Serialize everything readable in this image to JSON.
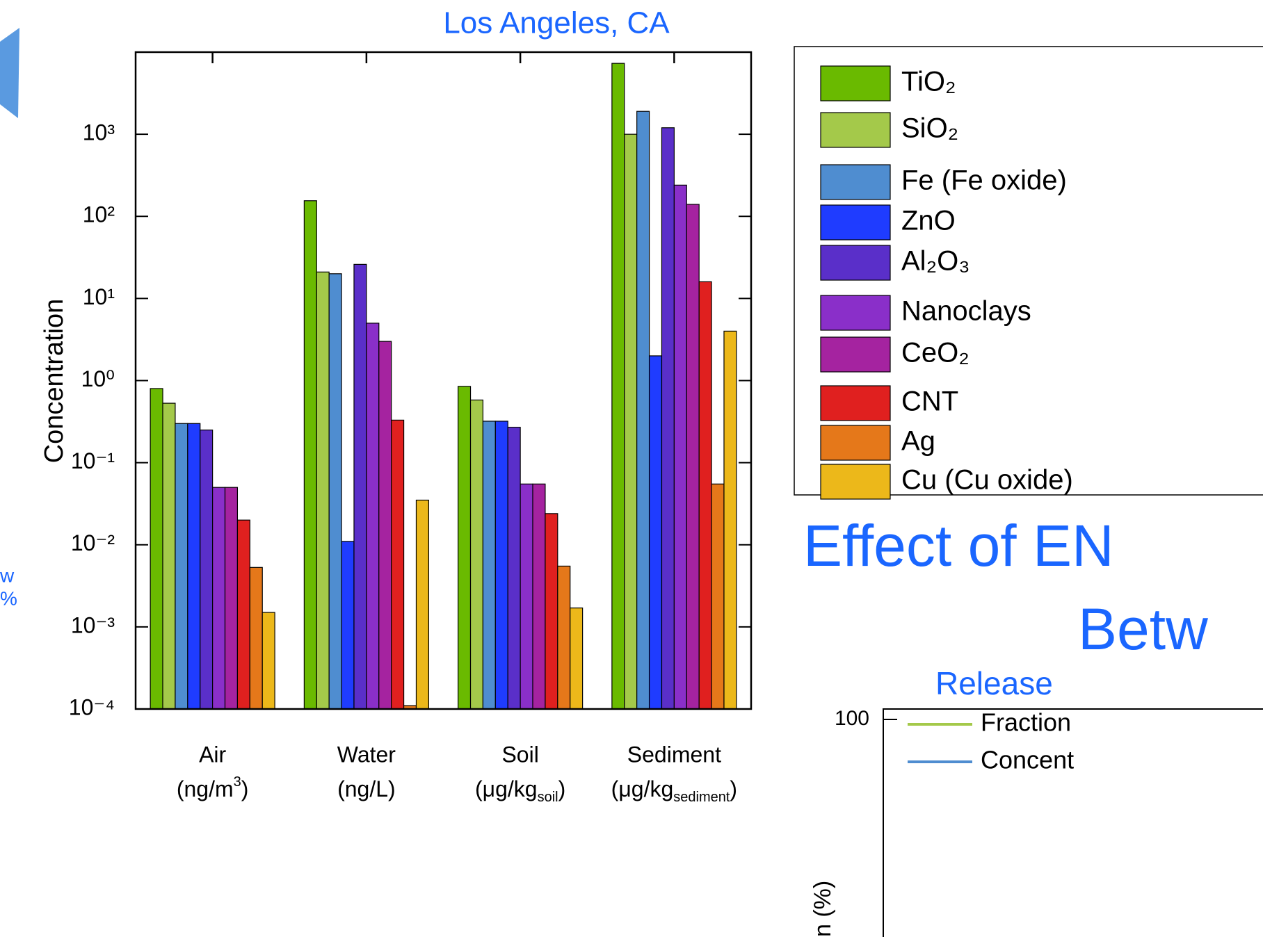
{
  "chart_data": {
    "type": "bar",
    "title": "Los Angeles, CA",
    "y_label": "Concentration",
    "log_scale": true,
    "grid": false,
    "categories": [
      "Air",
      "Water",
      "Soil",
      "Sediment"
    ],
    "category_units": [
      {
        "main": "(ng/m",
        "sup": "3",
        "end": ")"
      },
      {
        "main": "(ng/L)"
      },
      {
        "main": "(μg/kg",
        "sub": "soil",
        "end": ")"
      },
      {
        "main": "(μg/kg",
        "sub": "sediment",
        "end": ")"
      }
    ],
    "ylim": [
      0.0001,
      10000
    ],
    "yticks": [
      {
        "value": 0.0001,
        "label": "10⁻⁴"
      },
      {
        "value": 0.001,
        "label": "10⁻³"
      },
      {
        "value": 0.01,
        "label": "10⁻²"
      },
      {
        "value": 0.1,
        "label": "10⁻¹"
      },
      {
        "value": 1,
        "label": "10⁰"
      },
      {
        "value": 10,
        "label": "10¹"
      },
      {
        "value": 100,
        "label": "10²"
      },
      {
        "value": 1000,
        "label": "10³"
      }
    ],
    "legend_position": "right",
    "series": [
      {
        "name": "TiO₂",
        "color": "#6aba00",
        "values": [
          0.8,
          155,
          0.85,
          7300
        ]
      },
      {
        "name": "SiO₂",
        "color": "#a4c94a",
        "values": [
          0.53,
          21,
          0.58,
          1000
        ]
      },
      {
        "name": "Fe (Fe oxide)",
        "color": "#4f8dd0",
        "values": [
          0.3,
          20,
          0.32,
          1900
        ]
      },
      {
        "name": "ZnO",
        "color": "#1f3cff",
        "values": [
          0.3,
          0.011,
          0.32,
          2
        ]
      },
      {
        "name": "Al₂O₃",
        "color": "#5a2fc9",
        "values": [
          0.25,
          26,
          0.27,
          1200
        ]
      },
      {
        "name": "Nanoclays",
        "color": "#8a2fc9",
        "values": [
          0.05,
          5,
          0.055,
          240
        ]
      },
      {
        "name": "CeO₂",
        "color": "#a523a0",
        "values": [
          0.05,
          3,
          0.055,
          140
        ]
      },
      {
        "name": "CNT",
        "color": "#e0201f",
        "values": [
          0.02,
          0.33,
          0.024,
          16
        ]
      },
      {
        "name": "Ag",
        "color": "#e5781a",
        "values": [
          0.0053,
          0.00011,
          0.0055,
          0.055
        ]
      },
      {
        "name": "Cu (Cu oxide)",
        "color": "#ecb81a",
        "values": [
          0.0015,
          0.035,
          0.0017,
          4
        ]
      }
    ]
  },
  "slide": {
    "heading_line1": "Effect of EN",
    "heading_line2": "Betw",
    "subheading": "Release",
    "left_fragment_1": "w",
    "left_fragment_2": "%",
    "inset_ytick": "100",
    "inset_legend": [
      "Fraction",
      "Concent"
    ],
    "inset_ylabel": "n (%)"
  }
}
